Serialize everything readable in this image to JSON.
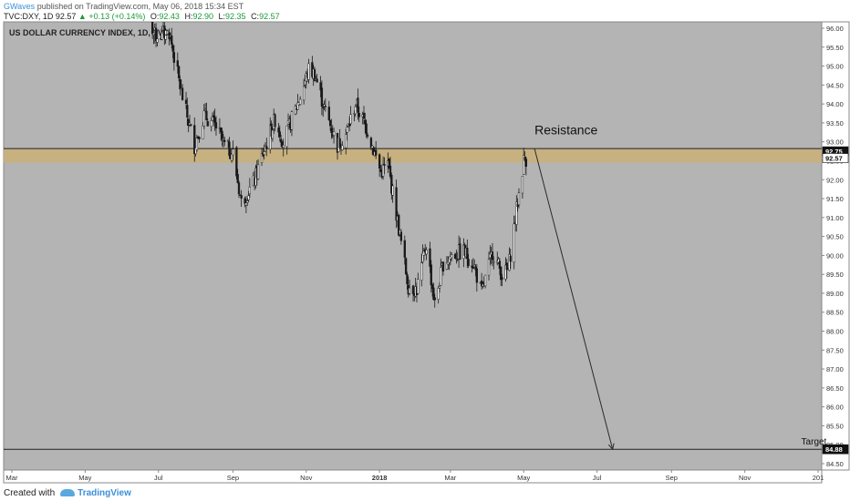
{
  "header": {
    "author": "GWaves",
    "published": "published on TradingView.com, May 06, 2018 15:34 EST",
    "symbol_line": "TVC:DXY, 1D",
    "last": "92.57",
    "change": "▲ +0.13 (+0.14%)",
    "o_label": "O:",
    "o": "92.43",
    "h_label": "H:",
    "h": "92.90",
    "l_label": "L:",
    "l": "92.35",
    "c_label": "C:",
    "c": "92.57"
  },
  "footer": {
    "created_with": "Created with",
    "brand": "TradingView"
  },
  "colors": {
    "plot_bg": "#b4b4b4",
    "resistance_band": "#c9b07a",
    "candle": "#1a1a1a",
    "arrow": "#2a2a2a"
  },
  "chart_data": {
    "type": "candlestick",
    "title": "US DOLLAR CURRENCY INDEX, 1D, TVC",
    "ylim": [
      84.0,
      96.2
    ],
    "y_ticks": [
      "96.00",
      "95.50",
      "95.00",
      "94.50",
      "94.00",
      "93.50",
      "93.00",
      "92.50",
      "92.00",
      "91.50",
      "91.00",
      "90.50",
      "90.00",
      "89.50",
      "89.00",
      "88.50",
      "88.00",
      "87.50",
      "87.00",
      "86.50",
      "86.00",
      "85.50",
      "85.00",
      "84.50"
    ],
    "x_start": "2017-03-01",
    "x_end": "2019-01-01",
    "x_ticks": [
      {
        "label": "Mar",
        "date": "2017-03-01"
      },
      {
        "label": "May",
        "date": "2017-05-01"
      },
      {
        "label": "Jul",
        "date": "2017-07-01"
      },
      {
        "label": "Sep",
        "date": "2017-09-01"
      },
      {
        "label": "Nov",
        "date": "2017-11-01"
      },
      {
        "label": "2018",
        "date": "2018-01-01"
      },
      {
        "label": "Mar",
        "date": "2018-03-01"
      },
      {
        "label": "May",
        "date": "2018-05-01"
      },
      {
        "label": "Jul",
        "date": "2018-07-01"
      },
      {
        "label": "Sep",
        "date": "2018-09-01"
      },
      {
        "label": "Nov",
        "date": "2018-11-01"
      },
      {
        "label": "201",
        "date": "2019-01-01"
      }
    ],
    "price_path": [
      {
        "date": "2017-06-20",
        "close": 96.5
      },
      {
        "date": "2017-06-28",
        "close": 95.8
      },
      {
        "date": "2017-07-10",
        "close": 95.9
      },
      {
        "date": "2017-07-20",
        "close": 94.3
      },
      {
        "date": "2017-07-31",
        "close": 92.9
      },
      {
        "date": "2017-08-08",
        "close": 93.7
      },
      {
        "date": "2017-08-18",
        "close": 93.4
      },
      {
        "date": "2017-08-25",
        "close": 92.9
      },
      {
        "date": "2017-09-01",
        "close": 92.7
      },
      {
        "date": "2017-09-08",
        "close": 91.4
      },
      {
        "date": "2017-09-18",
        "close": 91.9
      },
      {
        "date": "2017-09-26",
        "close": 92.7
      },
      {
        "date": "2017-10-06",
        "close": 93.6
      },
      {
        "date": "2017-10-13",
        "close": 93.0
      },
      {
        "date": "2017-10-26",
        "close": 94.1
      },
      {
        "date": "2017-11-03",
        "close": 94.9
      },
      {
        "date": "2017-11-08",
        "close": 94.8
      },
      {
        "date": "2017-11-16",
        "close": 93.9
      },
      {
        "date": "2017-11-27",
        "close": 92.9
      },
      {
        "date": "2017-12-04",
        "close": 93.2
      },
      {
        "date": "2017-12-12",
        "close": 94.0
      },
      {
        "date": "2017-12-22",
        "close": 93.3
      },
      {
        "date": "2018-01-02",
        "close": 92.2
      },
      {
        "date": "2018-01-08",
        "close": 92.4
      },
      {
        "date": "2018-01-16",
        "close": 90.9
      },
      {
        "date": "2018-01-25",
        "close": 89.2
      },
      {
        "date": "2018-02-01",
        "close": 89.1
      },
      {
        "date": "2018-02-09",
        "close": 90.3
      },
      {
        "date": "2018-02-16",
        "close": 88.7
      },
      {
        "date": "2018-02-23",
        "close": 89.8
      },
      {
        "date": "2018-03-02",
        "close": 90.0
      },
      {
        "date": "2018-03-12",
        "close": 90.1
      },
      {
        "date": "2018-03-20",
        "close": 89.8
      },
      {
        "date": "2018-03-27",
        "close": 89.0
      },
      {
        "date": "2018-04-05",
        "close": 90.1
      },
      {
        "date": "2018-04-13",
        "close": 89.5
      },
      {
        "date": "2018-04-18",
        "close": 89.6
      },
      {
        "date": "2018-04-25",
        "close": 91.2
      },
      {
        "date": "2018-05-01",
        "close": 92.5
      },
      {
        "date": "2018-05-04",
        "close": 92.57
      }
    ],
    "resistance_zone": [
      92.45,
      92.82
    ],
    "target_level": 84.88,
    "last_price": 92.57,
    "price_tags": [
      {
        "label": "92.75",
        "value": 92.75,
        "style": "dark"
      },
      {
        "label": "92.57",
        "value": 92.57,
        "style": "light"
      },
      {
        "label": "84.88",
        "value": 84.88,
        "style": "dark"
      }
    ],
    "annotations": [
      {
        "text": "Resistance",
        "date": "2018-05-10",
        "value": 93.2
      },
      {
        "text": "Target",
        "date": "2018-12-18",
        "value": 85.0
      }
    ],
    "projection_arrow": {
      "from": {
        "date": "2018-05-10",
        "value": 92.82
      },
      "to": {
        "date": "2018-07-14",
        "value": 84.88
      }
    }
  }
}
